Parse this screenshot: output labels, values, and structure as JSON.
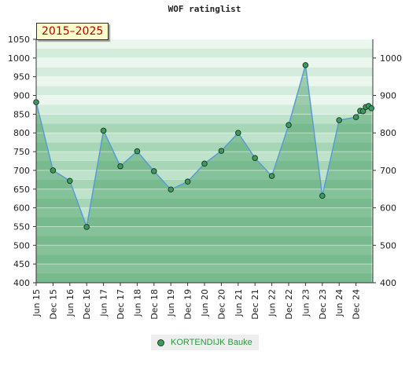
{
  "chart_data": {
    "type": "area",
    "title": "WOF ratinglist",
    "period_label": "2015–2025",
    "xlabel": "",
    "ylabel": "",
    "ylim": [
      400,
      1050
    ],
    "y_ticks_left": [
      400,
      450,
      500,
      550,
      600,
      650,
      700,
      750,
      800,
      850,
      900,
      950,
      1000,
      1050
    ],
    "y_ticks_right": [
      400,
      500,
      600,
      700,
      800,
      900,
      1000
    ],
    "x_ticks": [
      "Jun 15",
      "Dec 15",
      "Jun 16",
      "Dec 16",
      "Jun 17",
      "Dec 17",
      "Jun 18",
      "Dec 18",
      "Jun 19",
      "Dec 19",
      "Jun 20",
      "Dec 20",
      "Jun 21",
      "Dec 21",
      "Jun 22",
      "Dec 22",
      "Jun 23",
      "Dec 23",
      "Jun 24",
      "Dec 24"
    ],
    "grid": true,
    "legend_position": "bottom",
    "series": [
      {
        "name": "KORTENDIJK Bauke",
        "color": "#3d9a5e",
        "line_color": "#5b9bd5",
        "points": [
          {
            "t": 0,
            "y": 882
          },
          {
            "t": 6,
            "y": 700
          },
          {
            "t": 12,
            "y": 672
          },
          {
            "t": 18,
            "y": 549
          },
          {
            "t": 24,
            "y": 806
          },
          {
            "t": 30,
            "y": 711
          },
          {
            "t": 36,
            "y": 751
          },
          {
            "t": 42,
            "y": 698
          },
          {
            "t": 48,
            "y": 649
          },
          {
            "t": 54,
            "y": 670
          },
          {
            "t": 60,
            "y": 718
          },
          {
            "t": 66,
            "y": 752
          },
          {
            "t": 72,
            "y": 800
          },
          {
            "t": 78,
            "y": 733
          },
          {
            "t": 84,
            "y": 685
          },
          {
            "t": 90,
            "y": 821
          },
          {
            "t": 96,
            "y": 981
          },
          {
            "t": 102,
            "y": 632
          },
          {
            "t": 108,
            "y": 834
          },
          {
            "t": 114,
            "y": 842
          },
          {
            "t": 115.5,
            "y": 859
          },
          {
            "t": 116.5,
            "y": 858
          },
          {
            "t": 117.5,
            "y": 869
          },
          {
            "t": 118.5,
            "y": 872
          },
          {
            "t": 119.5,
            "y": 866
          }
        ]
      }
    ]
  }
}
